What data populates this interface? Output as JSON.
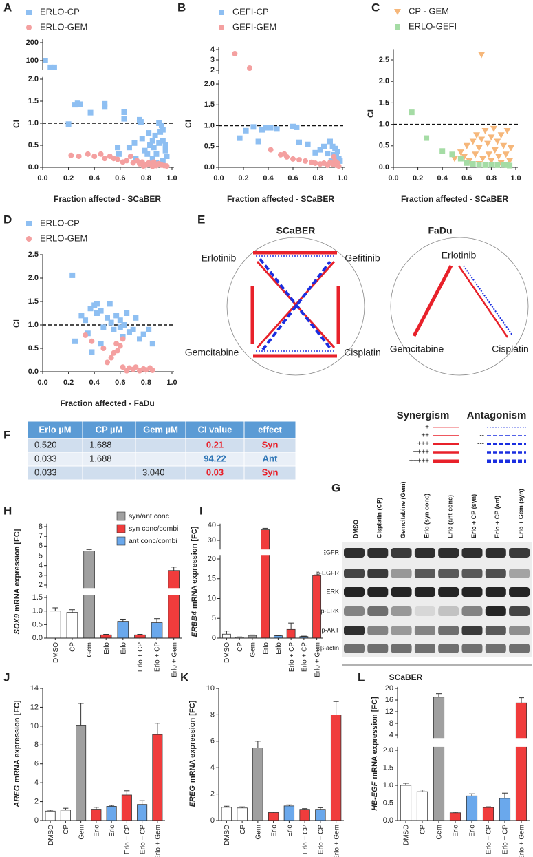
{
  "chart_data": [
    {
      "type": "scatter",
      "label": "A",
      "xlabel": "Fraction affected - SCaBER",
      "ylabel": "CI",
      "xlim": [
        0,
        1
      ],
      "xticks": [
        {
          "value": 0,
          "label": "0.0"
        },
        0.2,
        0.4,
        0.6,
        0.8,
        {
          "value": 1,
          "label": "1.0"
        }
      ],
      "segments": [
        {
          "ylim": [
            0,
            2.05
          ],
          "yticks": [
            {
              "value": 0,
              "label": "0.0"
            },
            0.5,
            {
              "value": 1,
              "label": "1.0"
            },
            1.5,
            {
              "value": 2,
              "label": "2.0"
            }
          ]
        },
        {
          "ylim": [
            50,
            220
          ],
          "yticks": [
            100,
            200
          ]
        }
      ],
      "reference_line": 1,
      "series": [
        {
          "name": "ERLO-CP",
          "color": "#8ebff2",
          "marker": "square",
          "x": [
            0.02,
            0.06,
            0.09,
            0.2,
            0.25,
            0.27,
            0.29,
            0.37,
            0.48,
            0.48,
            0.63,
            0.63,
            0.75,
            0.76,
            0.58,
            0.59,
            0.67,
            0.71,
            0.72,
            0.77,
            0.79,
            0.81,
            0.82,
            0.83,
            0.85,
            0.86,
            0.87,
            0.88,
            0.9,
            0.9,
            0.91,
            0.92,
            0.93,
            0.93,
            0.95,
            0.95,
            0.96,
            0.88,
            0.85,
            0.93
          ],
          "values": [
            100,
            62,
            62,
            0.98,
            1.42,
            1.45,
            1.43,
            1.24,
            1.44,
            1.37,
            1.25,
            1.1,
            1.08,
            1.03,
            0.45,
            0.3,
            0.45,
            0.55,
            0.2,
            0.65,
            0.38,
            0.3,
            0.78,
            0.5,
            0.6,
            0.45,
            0.72,
            0.3,
            1.0,
            0.55,
            0.8,
            0.95,
            0.85,
            0.6,
            0.5,
            0.38,
            0.25,
            0.1,
            0.2,
            0.15
          ]
        },
        {
          "name": "ERLO-GEM",
          "color": "#f4a0a0",
          "marker": "circle",
          "x": [
            0.22,
            0.28,
            0.35,
            0.4,
            0.45,
            0.48,
            0.52,
            0.55,
            0.58,
            0.62,
            0.65,
            0.68,
            0.7,
            0.73,
            0.75,
            0.77,
            0.8,
            0.82,
            0.84,
            0.86,
            0.88,
            0.9,
            0.92,
            0.94,
            0.96,
            0.85,
            0.78
          ],
          "values": [
            0.27,
            0.25,
            0.3,
            0.25,
            0.3,
            0.2,
            0.25,
            0.2,
            0.18,
            0.12,
            0.15,
            0.25,
            0.1,
            0.15,
            0.08,
            0.12,
            0.05,
            0.1,
            0.06,
            0.12,
            0.04,
            0.08,
            0.05,
            0.04,
            0.03,
            0.02,
            0.03
          ]
        }
      ]
    },
    {
      "type": "scatter",
      "label": "B",
      "xlabel": "Fraction affected - SCaBER",
      "ylabel": "CI",
      "xlim": [
        0,
        1
      ],
      "xticks": [
        {
          "value": 0,
          "label": "0.0"
        },
        0.2,
        0.4,
        0.6,
        0.8,
        {
          "value": 1,
          "label": "1.0"
        }
      ],
      "segments": [
        {
          "ylim": [
            0,
            2.1
          ],
          "yticks": [
            {
              "value": 0,
              "label": "0.0"
            },
            0.5,
            {
              "value": 1,
              "label": "1.0"
            },
            1.5,
            {
              "value": 2,
              "label": "2.0"
            }
          ]
        },
        {
          "ylim": [
            1.6,
            4.2
          ],
          "yticks": [
            2,
            3,
            4
          ]
        }
      ],
      "reference_line": 1,
      "series": [
        {
          "name": "GEFI-CP",
          "color": "#8ebff2",
          "marker": "square",
          "x": [
            0.17,
            0.22,
            0.28,
            0.32,
            0.35,
            0.38,
            0.42,
            0.47,
            0.6,
            0.63,
            0.65,
            0.72,
            0.78,
            0.82,
            0.85,
            0.88,
            0.9,
            0.92,
            0.93,
            0.94,
            0.95,
            0.96,
            0.97,
            0.98,
            0.91
          ],
          "values": [
            0.7,
            0.88,
            0.97,
            0.62,
            0.9,
            0.95,
            0.95,
            0.92,
            0.98,
            0.96,
            0.6,
            0.55,
            0.35,
            0.42,
            0.5,
            0.33,
            0.62,
            0.5,
            0.3,
            0.45,
            0.25,
            0.38,
            0.2,
            0.15,
            0.15
          ]
        },
        {
          "name": "GEFI-GEM",
          "color": "#f4a0a0",
          "marker": "circle",
          "x": [
            0.13,
            0.25,
            0.42,
            0.5,
            0.53,
            0.55,
            0.6,
            0.65,
            0.7,
            0.75,
            0.78,
            0.82,
            0.85,
            0.88,
            0.9,
            0.92,
            0.93,
            0.94,
            0.95,
            0.96,
            0.97
          ],
          "values": [
            3.6,
            2.2,
            0.42,
            0.3,
            0.32,
            0.25,
            0.2,
            0.18,
            0.15,
            0.12,
            0.1,
            0.08,
            0.1,
            0.05,
            0.12,
            0.08,
            0.25,
            0.15,
            0.05,
            0.1,
            0.03
          ]
        }
      ]
    },
    {
      "type": "scatter",
      "label": "C",
      "xlabel": "Fraction affected - SCaBER",
      "ylabel": "CI",
      "xlim": [
        0,
        1
      ],
      "xticks": [
        {
          "value": 0,
          "label": "0.0"
        },
        0.2,
        0.4,
        0.6,
        0.8,
        {
          "value": 1,
          "label": "1.0"
        }
      ],
      "ylim": [
        0,
        2.75
      ],
      "yticks": [
        {
          "value": 0,
          "label": "0.0"
        },
        0.5,
        {
          "value": 1,
          "label": "1.0"
        },
        1.5,
        {
          "value": 2,
          "label": "2.0"
        },
        2.5
      ],
      "reference_line": 1,
      "series": [
        {
          "name": "CP - GEM",
          "color": "#f6b77a",
          "marker": "triangle-down",
          "x": [
            0.72,
            0.5,
            0.55,
            0.58,
            0.6,
            0.62,
            0.65,
            0.67,
            0.68,
            0.7,
            0.72,
            0.73,
            0.75,
            0.77,
            0.78,
            0.8,
            0.82,
            0.83,
            0.85,
            0.86,
            0.88,
            0.9,
            0.92,
            0.93,
            0.95,
            0.96,
            0.88,
            0.8,
            0.7
          ],
          "values": [
            2.62,
            0.2,
            0.35,
            0.25,
            0.5,
            0.15,
            0.6,
            0.3,
            0.75,
            0.45,
            0.65,
            0.2,
            0.85,
            0.55,
            0.3,
            0.7,
            0.9,
            0.4,
            0.6,
            0.25,
            0.75,
            0.5,
            0.3,
            0.85,
            0.15,
            0.45,
            0.1,
            0.15,
            0.08
          ]
        },
        {
          "name": "ERLO-GEFI",
          "color": "#a5dca5",
          "marker": "square",
          "x": [
            0.15,
            0.27,
            0.4,
            0.48,
            0.55,
            0.6,
            0.65,
            0.7,
            0.75,
            0.8,
            0.85,
            0.9,
            0.93,
            0.95
          ],
          "values": [
            1.28,
            0.68,
            0.38,
            0.3,
            0.2,
            0.1,
            0.08,
            0.06,
            0.05,
            0.06,
            0.05,
            0.06,
            0.05,
            0.04
          ]
        }
      ]
    },
    {
      "type": "scatter",
      "label": "D",
      "xlabel": "Fraction affected - FaDu",
      "ylabel": "CI",
      "xlim": [
        0,
        1
      ],
      "xticks": [
        {
          "value": 0,
          "label": "0.0"
        },
        0.2,
        0.4,
        0.6,
        0.8,
        {
          "value": 1,
          "label": "1.0"
        }
      ],
      "ylim": [
        0,
        2.5
      ],
      "yticks": [
        {
          "value": 0,
          "label": "0.0"
        },
        0.5,
        {
          "value": 1,
          "label": "1.0"
        },
        1.5,
        {
          "value": 2,
          "label": "2.0"
        },
        2.5
      ],
      "reference_line": 1,
      "series": [
        {
          "name": "ERLO-CP",
          "color": "#8ebff2",
          "marker": "square",
          "x": [
            0.23,
            0.25,
            0.3,
            0.33,
            0.35,
            0.37,
            0.4,
            0.42,
            0.42,
            0.45,
            0.47,
            0.5,
            0.52,
            0.53,
            0.55,
            0.57,
            0.6,
            0.62,
            0.63,
            0.65,
            0.67,
            0.7,
            0.72,
            0.75,
            0.78,
            0.82,
            0.85,
            0.6,
            0.38,
            0.45
          ],
          "values": [
            2.06,
            0.65,
            1.2,
            1.1,
            0.82,
            1.35,
            1.42,
            1.45,
            1.25,
            1.3,
            0.95,
            1.15,
            1.45,
            1.05,
            0.9,
            1.2,
            1.1,
            0.75,
            1.0,
            1.25,
            0.85,
            0.9,
            1.15,
            0.7,
            0.8,
            0.9,
            0.6,
            0.95,
            0.42,
            0.6
          ]
        },
        {
          "name": "ERLO-GEM",
          "color": "#f4a0a0",
          "marker": "circle",
          "x": [
            0.33,
            0.38,
            0.47,
            0.5,
            0.53,
            0.55,
            0.57,
            0.6,
            0.62,
            0.65,
            0.67,
            0.7,
            0.72,
            0.75,
            0.78,
            0.8,
            0.83,
            0.85,
            0.62,
            0.58
          ],
          "values": [
            0.78,
            0.65,
            0.5,
            0.2,
            0.3,
            0.4,
            0.6,
            0.55,
            0.7,
            0.02,
            0.08,
            0.05,
            0.1,
            0.02,
            0.06,
            0.04,
            0.08,
            0.03,
            0.1,
            0.45
          ]
        }
      ]
    },
    {
      "type": "bar",
      "label": "H",
      "ylabel_gene": "SOX9",
      "ylabel": "mRNA expression [FC]",
      "categories": [
        "DMSO",
        "CP",
        "Gem",
        "Erlo",
        "Erlo",
        "Erlo + CP",
        "Erlo + CP",
        "Erlo + Gem"
      ],
      "values": [
        1.0,
        0.95,
        5.5,
        0.12,
        0.62,
        0.12,
        0.57,
        3.5
      ],
      "errors": [
        0.12,
        0.1,
        0.15,
        0.02,
        0.08,
        0.02,
        0.15,
        0.35
      ],
      "colors": [
        "#ffffff",
        "#ffffff",
        "#a0a0a0",
        "#f03c3c",
        "#6aa8ec",
        "#f03c3c",
        "#6aa8ec",
        "#f03c3c"
      ],
      "segments": [
        {
          "ylim": [
            0,
            1.6
          ],
          "yticks": [
            {
              "value": 0,
              "label": "0.0"
            },
            0.5,
            {
              "value": 1,
              "label": "1.0"
            },
            1.5
          ]
        },
        {
          "ylim": [
            1.7,
            8.3
          ],
          "yticks": [
            2,
            3,
            4,
            5,
            6,
            7,
            8
          ]
        }
      ],
      "legend": [
        {
          "label": "syn/ant conc",
          "color": "#a0a0a0"
        },
        {
          "label": "syn conc/combi",
          "color": "#f03c3c"
        },
        {
          "label": "ant conc/combi",
          "color": "#6aa8ec"
        }
      ]
    },
    {
      "type": "bar",
      "label": "I",
      "ylabel_gene": "ERBB4",
      "ylabel": "mRNA expression [FC]",
      "categories": [
        "DMSO",
        "CP",
        "Gem",
        "Erlo",
        "Erlo",
        "Erlo + CP",
        "Erlo + CP",
        "Erlo + Gem"
      ],
      "values": [
        1.0,
        0.2,
        0.7,
        37,
        0.6,
        2.2,
        0.4,
        15.8
      ],
      "errors": [
        0.8,
        0.1,
        0.1,
        1.0,
        0.1,
        1.6,
        0.1,
        0.15
      ],
      "colors": [
        "#ffffff",
        "#ffffff",
        "#a0a0a0",
        "#f03c3c",
        "#6aa8ec",
        "#f03c3c",
        "#6aa8ec",
        "#f03c3c"
      ],
      "segments": [
        {
          "ylim": [
            0,
            21
          ],
          "yticks": [
            0,
            5,
            10,
            15,
            20
          ]
        },
        {
          "ylim": [
            24,
            41
          ],
          "yticks": [
            30,
            40
          ]
        }
      ]
    },
    {
      "type": "bar",
      "label": "J",
      "ylabel_gene": "AREG",
      "ylabel": "mRNA expression [FC]",
      "categories": [
        "DMSO",
        "CP",
        "Gem",
        "Erlo",
        "Erlo",
        "Erlo + CP",
        "Erlo + CP",
        "Erlo + Gem"
      ],
      "values": [
        1.0,
        1.1,
        10.1,
        1.2,
        1.5,
        2.7,
        1.7,
        9.1
      ],
      "errors": [
        0.1,
        0.2,
        2.3,
        0.2,
        0.1,
        0.45,
        0.4,
        1.2
      ],
      "colors": [
        "#ffffff",
        "#ffffff",
        "#a0a0a0",
        "#f03c3c",
        "#6aa8ec",
        "#f03c3c",
        "#6aa8ec",
        "#f03c3c"
      ],
      "ylim": [
        0,
        14
      ],
      "yticks": [
        0,
        2,
        4,
        6,
        8,
        10,
        12,
        14
      ]
    },
    {
      "type": "bar",
      "label": "K",
      "ylabel_gene": "EREG",
      "ylabel": "mRNA expression [FC]",
      "categories": [
        "DMSO",
        "CP",
        "Gem",
        "Erlo",
        "Erlo",
        "Erlo + CP",
        "Erlo + CP",
        "Erlo + Gem"
      ],
      "values": [
        1.0,
        0.95,
        5.5,
        0.6,
        1.1,
        0.85,
        0.85,
        8.0
      ],
      "errors": [
        0.08,
        0.08,
        0.5,
        0.05,
        0.08,
        0.05,
        0.12,
        1.0
      ],
      "colors": [
        "#ffffff",
        "#ffffff",
        "#a0a0a0",
        "#f03c3c",
        "#6aa8ec",
        "#f03c3c",
        "#6aa8ec",
        "#f03c3c"
      ],
      "ylim": [
        0,
        10
      ],
      "yticks": [
        0,
        2,
        4,
        6,
        8,
        10
      ]
    },
    {
      "type": "bar",
      "label": "L",
      "ylabel_gene": "HB-EGF",
      "ylabel": "mRNA expression [FC]",
      "categories": [
        "DMSO",
        "CP",
        "Gem",
        "Erlo",
        "Erlo",
        "Erlo + CP",
        "Erlo + CP",
        "Erlo + Gem"
      ],
      "values": [
        1.0,
        0.82,
        17,
        0.22,
        0.7,
        0.37,
        0.63,
        15
      ],
      "errors": [
        0.06,
        0.05,
        1.2,
        0.02,
        0.06,
        0.02,
        0.15,
        1.8
      ],
      "colors": [
        "#ffffff",
        "#ffffff",
        "#a0a0a0",
        "#f03c3c",
        "#6aa8ec",
        "#f03c3c",
        "#6aa8ec",
        "#f03c3c"
      ],
      "segments": [
        {
          "ylim": [
            0,
            2.1
          ],
          "yticks": [
            {
              "value": 0,
              "label": "0.0"
            },
            0.5,
            {
              "value": 1,
              "label": "1.0"
            },
            1.5,
            {
              "value": 2,
              "label": "2.0"
            }
          ]
        },
        {
          "ylim": [
            3,
            20.5
          ],
          "yticks": [
            4,
            8,
            12,
            16,
            20
          ]
        }
      ]
    }
  ],
  "diagram": {
    "label": "E",
    "panels": [
      {
        "title": "SCaBER",
        "nodes": [
          "Erlotinib",
          "Gefitinib",
          "Gemcitabine",
          "Cisplatin"
        ]
      },
      {
        "title": "FaDu",
        "nodes": [
          "Erlotinib",
          "Gemcitabine",
          "Cisplatin"
        ]
      }
    ],
    "legend": {
      "synergism": {
        "title": "Synergism",
        "levels": [
          "+",
          "++",
          "+++",
          "++++",
          "+++++"
        ]
      },
      "antagonism": {
        "title": "Antagonism",
        "levels": [
          "-",
          "--",
          "---",
          "----",
          "-----"
        ]
      }
    }
  },
  "table": {
    "label": "F",
    "header": [
      "Erlo µM",
      "CP µM",
      "Gem µM",
      "CI value",
      "effect"
    ],
    "rows": [
      [
        "0.520",
        "1.688",
        null,
        "0.21",
        "Syn"
      ],
      [
        "0.033",
        "1.688",
        null,
        "94.22",
        "Ant"
      ],
      [
        "0.033",
        null,
        "3.040",
        "0.03",
        "Syn"
      ]
    ],
    "row_colors": [
      "#e8212a",
      "#2e75b6",
      "#e8212a"
    ]
  },
  "blot": {
    "label": "G",
    "lanes": [
      "DMSO",
      "Cisplatin (CP)",
      "Gemcitabine (Gem)",
      "Erlo (syn conc)",
      "Erlo (ant conc)",
      "Erlo + CP (syn)",
      "Erlo + CP (ant)",
      "Erlo + Gem (syn)"
    ],
    "rows": [
      "EGFR",
      "p-EGFR",
      "ERK",
      "p-ERK",
      "p-AKT",
      "β-actin"
    ],
    "cell_line": "SCaBER"
  }
}
